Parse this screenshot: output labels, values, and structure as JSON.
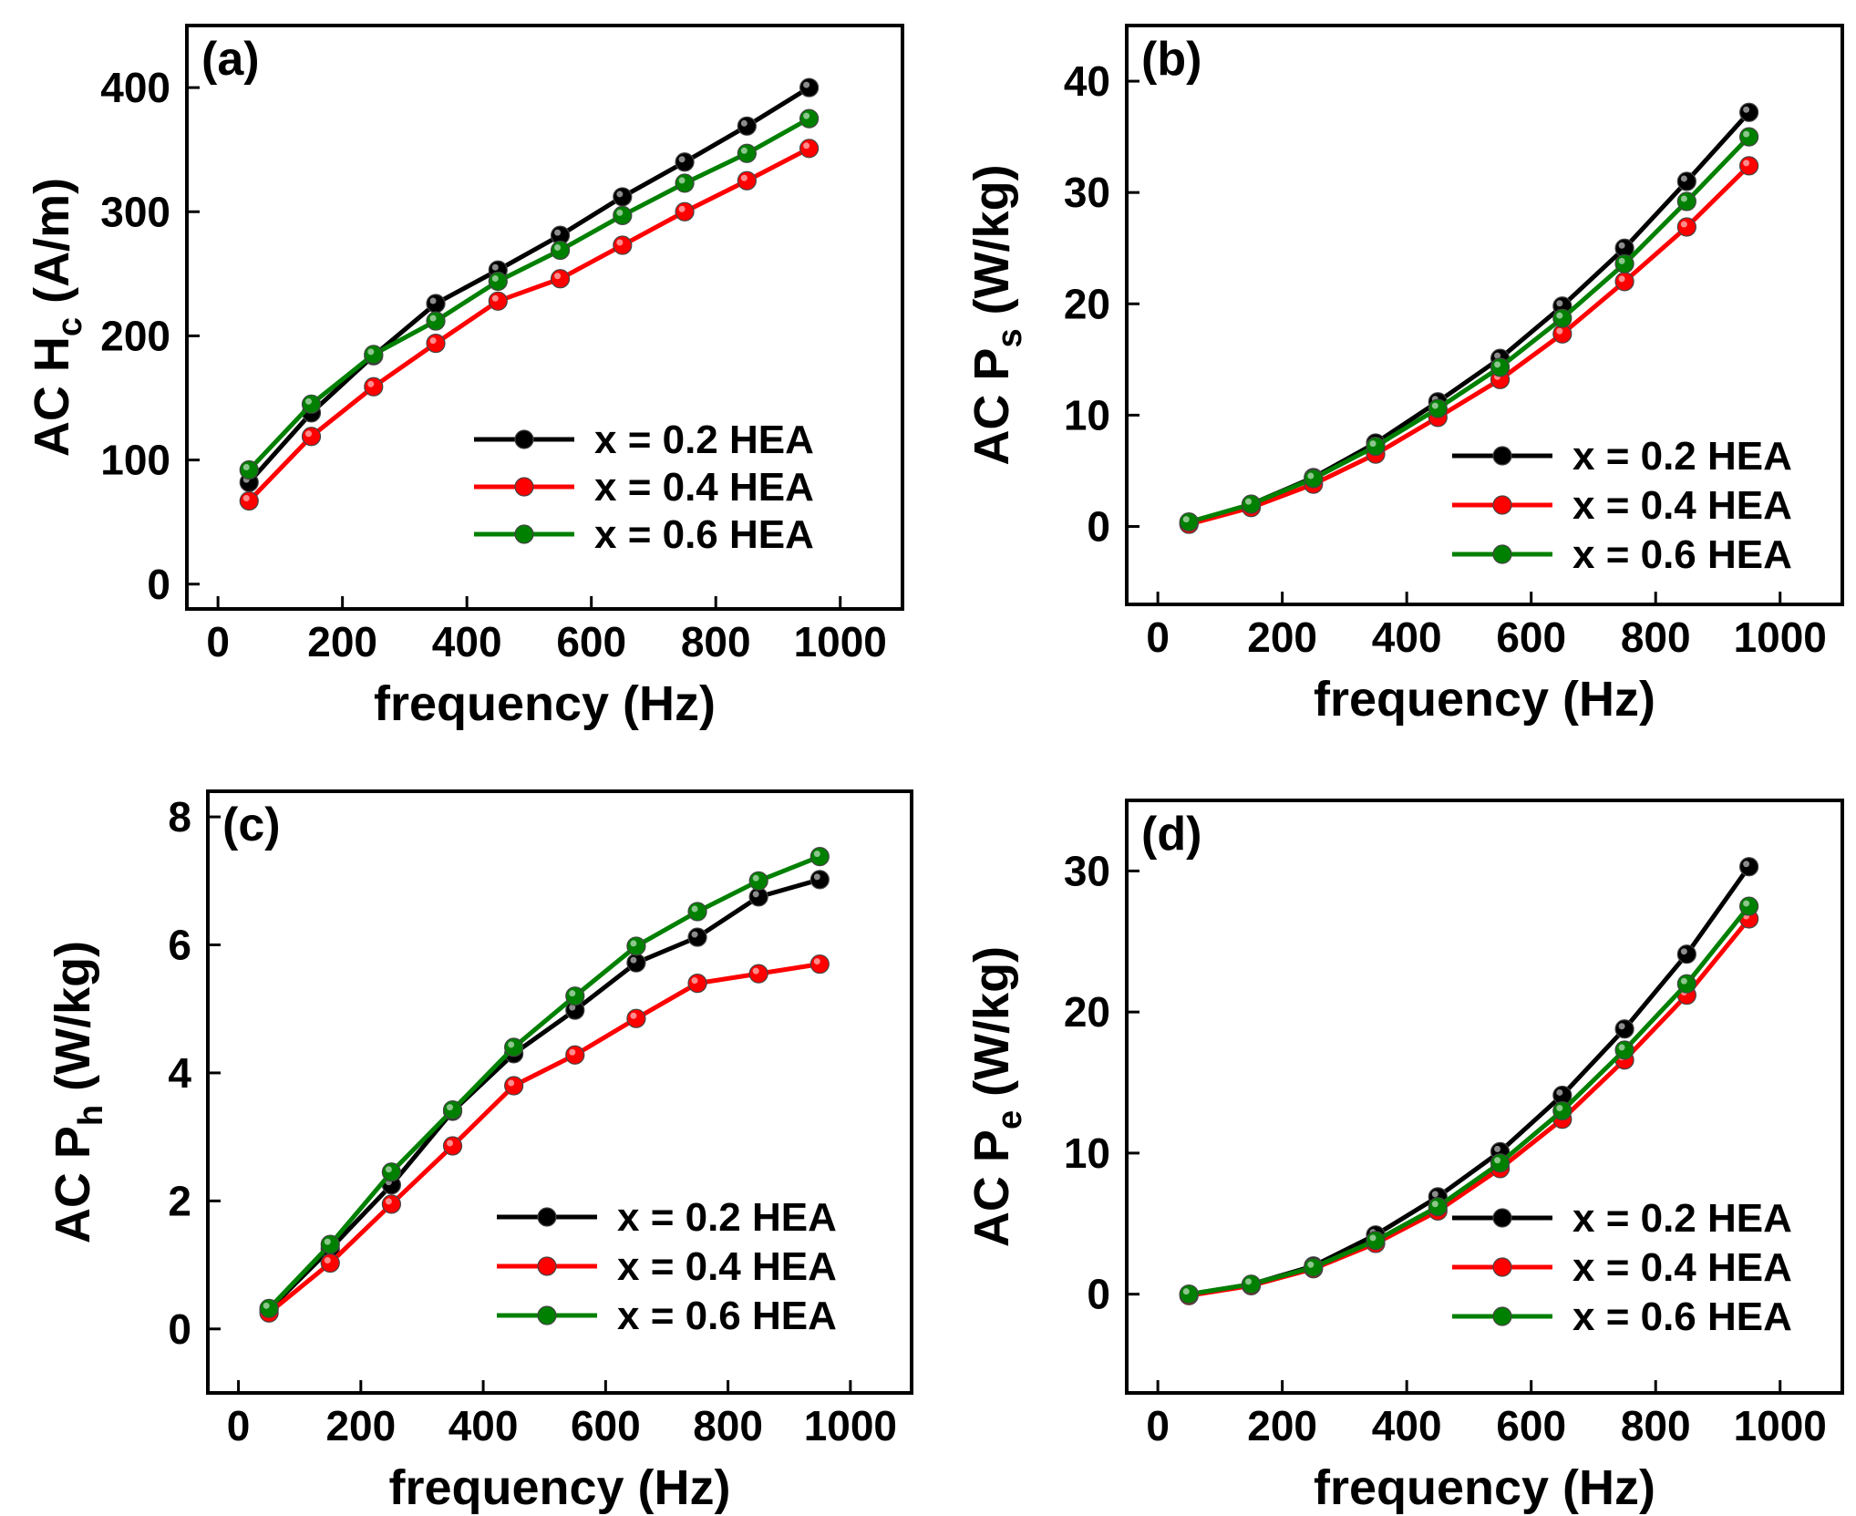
{
  "figure": {
    "colors": {
      "x02": "#000000",
      "x04": "#ff0000",
      "x06": "#008000"
    }
  },
  "chart_data": [
    {
      "type": "line",
      "panel_label": "(a)",
      "title": "",
      "xlabel": "frequency (Hz)",
      "ylabel": "AC H",
      "ylabel_sub": "c",
      "ylabel_tail": " (A/m)",
      "xlim": [
        -50,
        1100
      ],
      "ylim": [
        -20,
        450
      ],
      "xticks": [
        0,
        200,
        400,
        600,
        800,
        1000
      ],
      "yticks": [
        0,
        100,
        200,
        300,
        400
      ],
      "x": [
        50,
        150,
        250,
        350,
        450,
        550,
        650,
        750,
        850,
        950
      ],
      "series": [
        {
          "name": "x = 0.2 HEA",
          "color": "#000000",
          "values": [
            82,
            138,
            184,
            226,
            253,
            281,
            312,
            340,
            369,
            400
          ]
        },
        {
          "name": "x = 0.4 HEA",
          "color": "#ff0000",
          "values": [
            67,
            119,
            159,
            194,
            228,
            246,
            273,
            300,
            325,
            351
          ]
        },
        {
          "name": "x = 0.6 HEA",
          "color": "#008000",
          "values": [
            92,
            145,
            185,
            212,
            244,
            269,
            297,
            323,
            347,
            375
          ]
        }
      ],
      "legend": "bottom-right"
    },
    {
      "type": "line",
      "panel_label": "(b)",
      "title": "",
      "xlabel": "frequency (Hz)",
      "ylabel": "AC P",
      "ylabel_sub": "s",
      "ylabel_tail": " (W/kg)",
      "xlim": [
        -50,
        1100
      ],
      "ylim": [
        -7,
        45
      ],
      "xticks": [
        0,
        200,
        400,
        600,
        800,
        1000
      ],
      "yticks": [
        0,
        10,
        20,
        30,
        40
      ],
      "x": [
        50,
        150,
        250,
        350,
        450,
        550,
        650,
        750,
        850,
        950
      ],
      "series": [
        {
          "name": "x = 0.2 HEA",
          "color": "#000000",
          "values": [
            0.3,
            2.0,
            4.4,
            7.5,
            11.2,
            15.1,
            19.8,
            25.0,
            31.0,
            37.2
          ]
        },
        {
          "name": "x = 0.4 HEA",
          "color": "#ff0000",
          "values": [
            0.2,
            1.7,
            3.8,
            6.5,
            9.8,
            13.2,
            17.3,
            22.0,
            26.9,
            32.4
          ]
        },
        {
          "name": "x = 0.6 HEA",
          "color": "#008000",
          "values": [
            0.4,
            2.0,
            4.3,
            7.2,
            10.6,
            14.3,
            18.7,
            23.6,
            29.2,
            35.0
          ]
        }
      ],
      "legend": "bottom-right"
    },
    {
      "type": "line",
      "panel_label": "(c)",
      "title": "",
      "xlabel": "frequency (Hz)",
      "ylabel": "AC P",
      "ylabel_sub": "h",
      "ylabel_tail": " (W/kg)",
      "xlim": [
        -50,
        1100
      ],
      "ylim": [
        -1,
        8.4
      ],
      "xticks": [
        0,
        200,
        400,
        600,
        800,
        1000
      ],
      "yticks": [
        0,
        2,
        4,
        6,
        8
      ],
      "x": [
        50,
        150,
        250,
        350,
        450,
        550,
        650,
        750,
        850,
        950
      ],
      "series": [
        {
          "name": "x = 0.2 HEA",
          "color": "#000000",
          "values": [
            0.3,
            1.25,
            2.25,
            3.4,
            4.3,
            4.98,
            5.72,
            6.12,
            6.75,
            7.02
          ]
        },
        {
          "name": "x = 0.4 HEA",
          "color": "#ff0000",
          "values": [
            0.25,
            1.03,
            1.95,
            2.86,
            3.8,
            4.28,
            4.85,
            5.4,
            5.55,
            5.7
          ]
        },
        {
          "name": "x = 0.6 HEA",
          "color": "#008000",
          "values": [
            0.32,
            1.32,
            2.45,
            3.42,
            4.4,
            5.2,
            5.98,
            6.52,
            7.0,
            7.38
          ]
        }
      ],
      "legend": "bottom-right"
    },
    {
      "type": "line",
      "panel_label": "(d)",
      "title": "",
      "xlabel": "frequency (Hz)",
      "ylabel": "AC P",
      "ylabel_sub": "e",
      "ylabel_tail": " (W/kg)",
      "xlim": [
        -50,
        1100
      ],
      "ylim": [
        -7,
        35
      ],
      "xticks": [
        0,
        200,
        400,
        600,
        800,
        1000
      ],
      "yticks": [
        0,
        10,
        20,
        30
      ],
      "x": [
        50,
        150,
        250,
        350,
        450,
        550,
        650,
        750,
        850,
        950
      ],
      "series": [
        {
          "name": "x = 0.2 HEA",
          "color": "#000000",
          "values": [
            0.0,
            0.7,
            2.0,
            4.2,
            6.9,
            10.1,
            14.1,
            18.8,
            24.1,
            30.3
          ]
        },
        {
          "name": "x = 0.4 HEA",
          "color": "#ff0000",
          "values": [
            -0.1,
            0.6,
            1.8,
            3.6,
            5.9,
            8.9,
            12.4,
            16.6,
            21.2,
            26.6
          ]
        },
        {
          "name": "x = 0.6 HEA",
          "color": "#008000",
          "values": [
            0.0,
            0.7,
            1.9,
            3.8,
            6.2,
            9.3,
            13.0,
            17.3,
            22.0,
            27.5
          ]
        }
      ],
      "legend": "bottom-right"
    }
  ]
}
